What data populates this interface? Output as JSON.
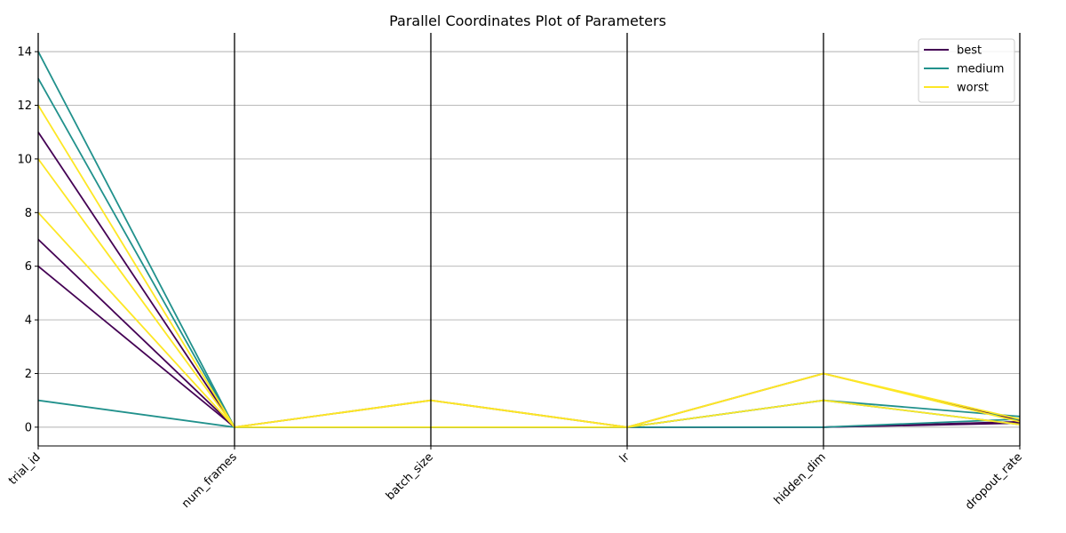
{
  "chart_data": {
    "type": "parallel-coordinates",
    "title": "Parallel Coordinates Plot of Parameters",
    "dimensions": [
      "trial_id",
      "num_frames",
      "batch_size",
      "lr",
      "hidden_dim",
      "dropout_rate"
    ],
    "ylim": [
      -0.7,
      14.7
    ],
    "yticks": [
      0,
      2,
      4,
      6,
      8,
      10,
      12,
      14
    ],
    "grid": true,
    "legend_position": "top-right",
    "legend": [
      {
        "name": "best",
        "color": "#440154"
      },
      {
        "name": "medium",
        "color": "#21918c"
      },
      {
        "name": "worst",
        "color": "#fde725"
      }
    ],
    "rows": [
      {
        "group": "best",
        "values": [
          6,
          0,
          0,
          0,
          0,
          0.15
        ]
      },
      {
        "group": "best",
        "values": [
          7,
          0,
          0,
          0,
          0,
          0.2
        ]
      },
      {
        "group": "best",
        "values": [
          11,
          0,
          1,
          0,
          2,
          0.25
        ]
      },
      {
        "group": "medium",
        "values": [
          1,
          0,
          0,
          0,
          1,
          0.4
        ]
      },
      {
        "group": "medium",
        "values": [
          13,
          0,
          0,
          0,
          1,
          0.1
        ]
      },
      {
        "group": "medium",
        "values": [
          14,
          0,
          0,
          0,
          0,
          0.3
        ]
      },
      {
        "group": "worst",
        "values": [
          8,
          0,
          1,
          0,
          2,
          0.2
        ]
      },
      {
        "group": "worst",
        "values": [
          10,
          0,
          0,
          0,
          1,
          0.1
        ]
      },
      {
        "group": "worst",
        "values": [
          12,
          0,
          1,
          0,
          2,
          0.3
        ]
      }
    ]
  }
}
